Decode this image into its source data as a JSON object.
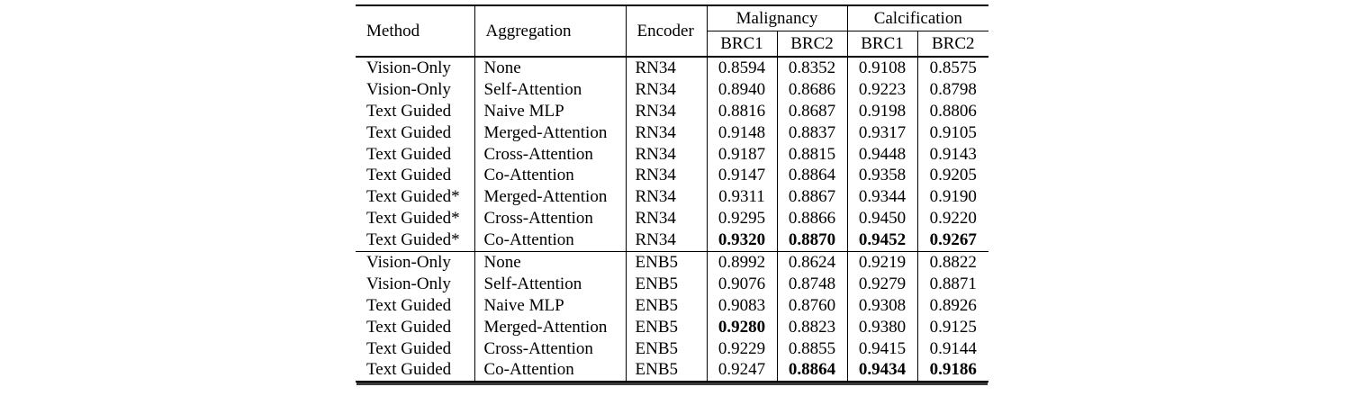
{
  "colors": {
    "background": "#ffffff",
    "text": "#000000",
    "rule": "#000000"
  },
  "table": {
    "columns": [
      "Method",
      "Aggregation",
      "Encoder"
    ],
    "groups": [
      "Malignancy",
      "Calcification"
    ],
    "subcolumns": [
      "BRC1",
      "BRC2",
      "BRC1",
      "BRC2"
    ],
    "rows": [
      {
        "method": "Vision-Only",
        "aggregation": "None",
        "encoder": "RN34",
        "values": [
          "0.8594",
          "0.8352",
          "0.9108",
          "0.8575"
        ],
        "bold": [
          false,
          false,
          false,
          false
        ],
        "section_start": false
      },
      {
        "method": "Vision-Only",
        "aggregation": "Self-Attention",
        "encoder": "RN34",
        "values": [
          "0.8940",
          "0.8686",
          "0.9223",
          "0.8798"
        ],
        "bold": [
          false,
          false,
          false,
          false
        ],
        "section_start": false
      },
      {
        "method": "Text Guided",
        "aggregation": "Naive MLP",
        "encoder": "RN34",
        "values": [
          "0.8816",
          "0.8687",
          "0.9198",
          "0.8806"
        ],
        "bold": [
          false,
          false,
          false,
          false
        ],
        "section_start": false
      },
      {
        "method": "Text Guided",
        "aggregation": "Merged-Attention",
        "encoder": "RN34",
        "values": [
          "0.9148",
          "0.8837",
          "0.9317",
          "0.9105"
        ],
        "bold": [
          false,
          false,
          false,
          false
        ],
        "section_start": false
      },
      {
        "method": "Text Guided",
        "aggregation": "Cross-Attention",
        "encoder": "RN34",
        "values": [
          "0.9187",
          "0.8815",
          "0.9448",
          "0.9143"
        ],
        "bold": [
          false,
          false,
          false,
          false
        ],
        "section_start": false
      },
      {
        "method": "Text Guided",
        "aggregation": "Co-Attention",
        "encoder": "RN34",
        "values": [
          "0.9147",
          "0.8864",
          "0.9358",
          "0.9205"
        ],
        "bold": [
          false,
          false,
          false,
          false
        ],
        "section_start": false
      },
      {
        "method": "Text Guided*",
        "aggregation": "Merged-Attention",
        "encoder": "RN34",
        "values": [
          "0.9311",
          "0.8867",
          "0.9344",
          "0.9190"
        ],
        "bold": [
          false,
          false,
          false,
          false
        ],
        "section_start": false
      },
      {
        "method": "Text Guided*",
        "aggregation": "Cross-Attention",
        "encoder": "RN34",
        "values": [
          "0.9295",
          "0.8866",
          "0.9450",
          "0.9220"
        ],
        "bold": [
          false,
          false,
          false,
          false
        ],
        "section_start": false
      },
      {
        "method": "Text Guided*",
        "aggregation": "Co-Attention",
        "encoder": "RN34",
        "values": [
          "0.9320",
          "0.8870",
          "0.9452",
          "0.9267"
        ],
        "bold": [
          true,
          true,
          true,
          true
        ],
        "section_start": false
      },
      {
        "method": "Vision-Only",
        "aggregation": "None",
        "encoder": "ENB5",
        "values": [
          "0.8992",
          "0.8624",
          "0.9219",
          "0.8822"
        ],
        "bold": [
          false,
          false,
          false,
          false
        ],
        "section_start": true
      },
      {
        "method": "Vision-Only",
        "aggregation": "Self-Attention",
        "encoder": "ENB5",
        "values": [
          "0.9076",
          "0.8748",
          "0.9279",
          "0.8871"
        ],
        "bold": [
          false,
          false,
          false,
          false
        ],
        "section_start": false
      },
      {
        "method": "Text Guided",
        "aggregation": "Naive MLP",
        "encoder": "ENB5",
        "values": [
          "0.9083",
          "0.8760",
          "0.9308",
          "0.8926"
        ],
        "bold": [
          false,
          false,
          false,
          false
        ],
        "section_start": false
      },
      {
        "method": "Text Guided",
        "aggregation": "Merged-Attention",
        "encoder": "ENB5",
        "values": [
          "0.9280",
          "0.8823",
          "0.9380",
          "0.9125"
        ],
        "bold": [
          true,
          false,
          false,
          false
        ],
        "section_start": false
      },
      {
        "method": "Text Guided",
        "aggregation": "Cross-Attention",
        "encoder": "ENB5",
        "values": [
          "0.9229",
          "0.8855",
          "0.9415",
          "0.9144"
        ],
        "bold": [
          false,
          false,
          false,
          false
        ],
        "section_start": false
      },
      {
        "method": "Text Guided",
        "aggregation": "Co-Attention",
        "encoder": "ENB5",
        "values": [
          "0.9247",
          "0.8864",
          "0.9434",
          "0.9186"
        ],
        "bold": [
          false,
          true,
          true,
          true
        ],
        "section_start": false
      }
    ]
  }
}
